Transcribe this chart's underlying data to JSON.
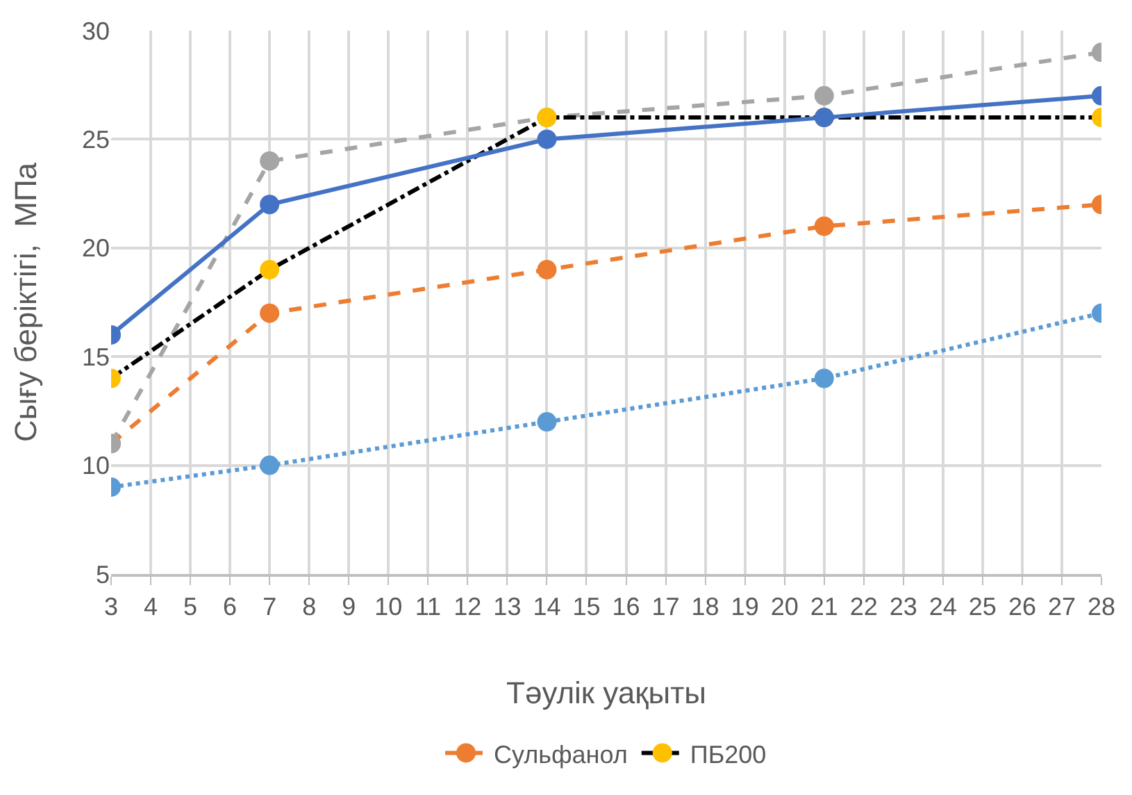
{
  "chart_data": {
    "type": "line",
    "xlabel": "Тәулік уақыты",
    "ylabel": "Сығу беріктігі,  МПа",
    "x": [
      3,
      7,
      14,
      21,
      28
    ],
    "xlim": [
      3,
      28
    ],
    "xticks": [
      3,
      4,
      5,
      6,
      7,
      8,
      9,
      10,
      11,
      12,
      13,
      14,
      15,
      16,
      17,
      18,
      19,
      20,
      21,
      22,
      23,
      24,
      25,
      26,
      27,
      28
    ],
    "ylim": [
      5,
      30
    ],
    "yticks": [
      5,
      10,
      15,
      20,
      25,
      30
    ],
    "grid": true,
    "legend": "bottom",
    "marker": "circle",
    "series": [
      {
        "color": "#5b9bd5",
        "line_style": "dotted",
        "values": [
          9,
          10,
          12,
          14,
          17
        ]
      },
      {
        "name": "Сульфанол",
        "color": "#ed7d31",
        "line_style": "dashed",
        "values": [
          11,
          17,
          19,
          21,
          22
        ]
      },
      {
        "color": "#a5a5a5",
        "line_style": "dashed",
        "values": [
          11,
          24,
          26,
          27,
          29
        ]
      },
      {
        "name": "ПБ200",
        "color": "#000000",
        "colors": [
          "#ffc000",
          "#ffc000",
          "#ffc000",
          "#ffc000",
          "#ffc000"
        ],
        "line_style": "dashdot",
        "values": [
          14,
          19,
          26,
          26,
          26
        ]
      },
      {
        "color": "#4472c4",
        "line_style": "solid",
        "values": [
          16,
          22,
          25,
          26,
          27
        ]
      }
    ]
  }
}
